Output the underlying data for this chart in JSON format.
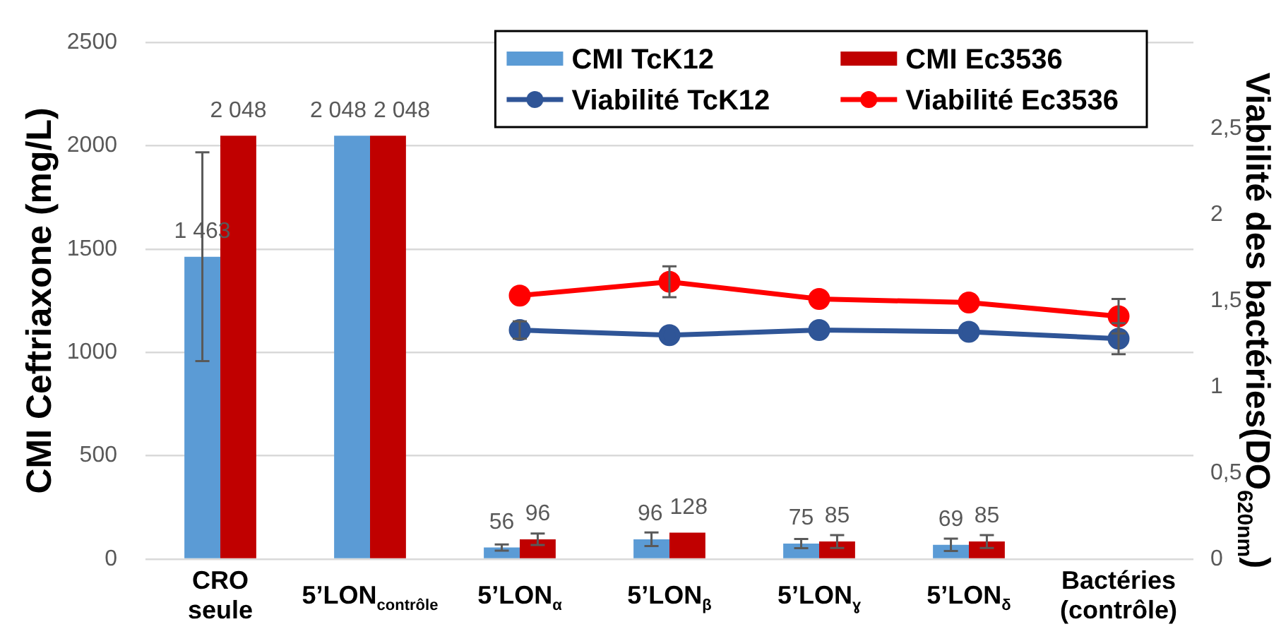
{
  "chart_data": {
    "type": "bar",
    "categories": [
      "CRO seule",
      "5’LON$_{contrôle}$",
      "5’LON$_{α}$",
      "5’LON$_{β}$",
      "5’LON$_{ɣ}$",
      "5’LON$_{δ}$",
      "Bactéries (contrôle)"
    ],
    "ylabel": "CMI Ceftriaxone (mg/L)",
    "y2label": "Viabilité des bactéries(DO$_{620nm}$)",
    "series": [
      {
        "name": "CMI TcK12",
        "color": "#5b9bd5",
        "values": [
          1463,
          2048,
          56,
          96,
          75,
          69,
          null
        ],
        "errors": [
          505,
          null,
          15,
          33,
          22,
          30,
          null
        ],
        "value_labels": [
          "1 463",
          "2 048",
          "56",
          "96",
          "75",
          "69",
          null
        ]
      },
      {
        "name": "CMI Ec3536",
        "color": "#c00000",
        "values": [
          2048,
          2048,
          96,
          128,
          85,
          85,
          null
        ],
        "errors": [
          null,
          null,
          28,
          null,
          31,
          31,
          null
        ],
        "value_labels": [
          "2 048",
          "2 048",
          "96",
          "128",
          "85",
          "85",
          null
        ]
      },
      {
        "name": "Viabilité TcK12",
        "type": "line",
        "axis": "y2",
        "color": "#2f5597",
        "values": [
          null,
          null,
          1.33,
          1.3,
          1.33,
          1.32,
          1.28
        ],
        "errors": [
          null,
          null,
          0.05,
          null,
          null,
          null,
          0.09
        ]
      },
      {
        "name": "Viabilité Ec3536",
        "type": "line",
        "axis": "y2",
        "color": "#ff0000",
        "values": [
          null,
          null,
          1.53,
          1.61,
          1.51,
          1.49,
          1.41
        ],
        "errors": [
          null,
          null,
          null,
          0.09,
          null,
          null,
          0.1
        ]
      }
    ],
    "ylim": [
      0,
      2500
    ],
    "yticks": [
      0,
      500,
      1000,
      1500,
      2000,
      2500
    ],
    "y2lim": [
      0,
      3
    ],
    "y2ticks": [
      0,
      {
        "value": 0.5,
        "label": "0,5"
      },
      1,
      {
        "value": 1.5,
        "label": "1,5"
      },
      2,
      {
        "value": 2.5,
        "label": "2,5"
      }
    ],
    "grid": "y",
    "legend": "top right",
    "marker": "circle",
    "line_style": "solid"
  }
}
